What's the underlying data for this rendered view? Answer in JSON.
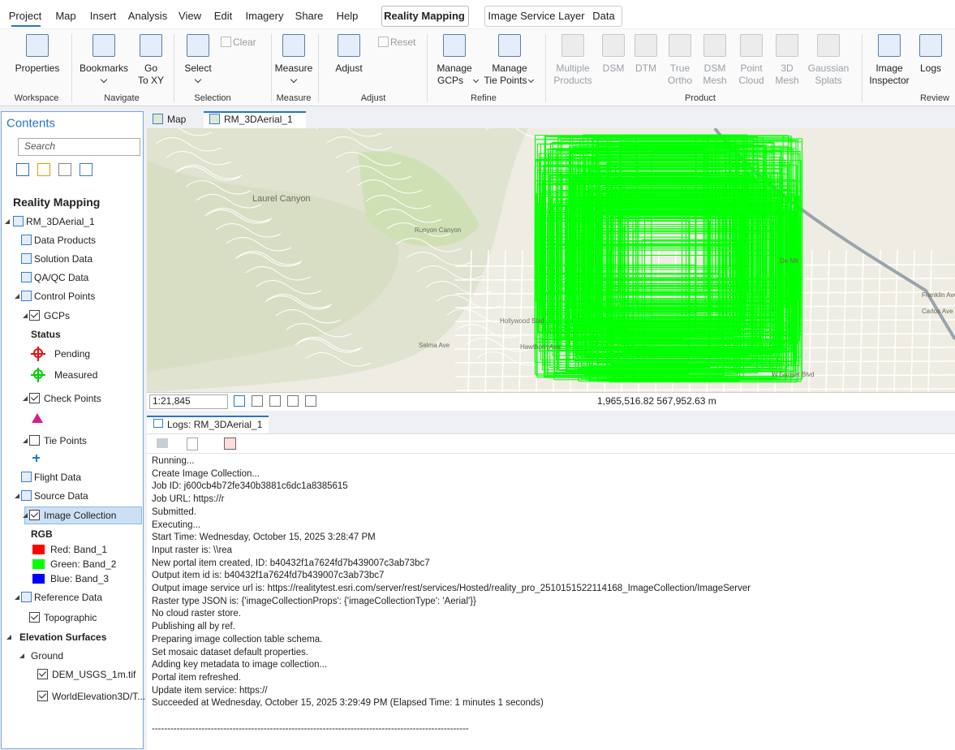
{
  "menu": {
    "tabs": [
      "Project",
      "Map",
      "Insert",
      "Analysis",
      "View",
      "Edit",
      "Imagery",
      "Share",
      "Help",
      "Reality Mapping",
      "Image Service Layer",
      "Data"
    ]
  },
  "ribbon": {
    "groups": [
      {
        "name": "Workspace",
        "buttons": [
          {
            "lines": [
              "Properties"
            ]
          }
        ]
      },
      {
        "name": "Navigate",
        "buttons": [
          {
            "lines": [
              "Bookmarks"
            ]
          },
          {
            "lines": [
              "Go",
              "To XY"
            ]
          }
        ]
      },
      {
        "name": "Selection",
        "buttons": [
          {
            "lines": [
              "Select"
            ]
          },
          {
            "lines": [
              "Clear"
            ]
          }
        ]
      },
      {
        "name": "Measure",
        "buttons": [
          {
            "lines": [
              "Measure"
            ]
          }
        ]
      },
      {
        "name": "Adjust",
        "buttons": [
          {
            "lines": [
              "Adjust"
            ]
          },
          {
            "lines": [
              "Reset"
            ]
          }
        ]
      },
      {
        "name": "Refine",
        "buttons": [
          {
            "lines": [
              "Manage",
              "GCPs"
            ]
          },
          {
            "lines": [
              "Manage",
              "Tie Points"
            ]
          }
        ]
      },
      {
        "name": "Product",
        "buttons": [
          {
            "lines": [
              "Multiple",
              "Products"
            ]
          },
          {
            "lines": [
              "DSM"
            ]
          },
          {
            "lines": [
              "DTM"
            ]
          },
          {
            "lines": [
              "True",
              "Ortho"
            ]
          },
          {
            "lines": [
              "DSM",
              "Mesh"
            ]
          },
          {
            "lines": [
              "Point",
              "Cloud"
            ]
          },
          {
            "lines": [
              "3D",
              "Mesh"
            ]
          },
          {
            "lines": [
              "Gaussian",
              "Splats"
            ]
          }
        ]
      },
      {
        "name": "Review",
        "buttons": [
          {
            "lines": [
              "Image",
              "Inspector"
            ]
          },
          {
            "lines": [
              "Logs"
            ]
          }
        ]
      }
    ]
  },
  "contents": {
    "title": "Contents",
    "search": "Search",
    "heading": "Reality Mapping",
    "items": [
      "RM_3DAerial_1",
      "Data Products",
      "Solution Data",
      "QA/QC Data",
      "Control Points",
      "GCPs",
      "Status",
      "Pending",
      "Measured",
      "Check Points",
      "Tie Points",
      "Flight Data",
      "Source Data",
      "Image Collection",
      "RGB",
      "Red: Band_1",
      "Green: Band_2",
      "Blue: Band_3",
      "Reference Data",
      "Topographic",
      "Elevation Surfaces",
      "Ground",
      "DEM_USGS_1m.tif",
      "WorldElevation3D/T..."
    ]
  },
  "map": {
    "tabs": [
      "Map",
      "RM_3DAerial_1"
    ],
    "labels": [
      "Laurel Canyon",
      "Runyon Canyon",
      "Hollywood Blvd",
      "Selma Ave",
      "Hawthorn Ave",
      "W Sunset Blvd",
      "Franklin Ave",
      "Carlos Ave",
      "De Mil"
    ],
    "scale": "1:21,845",
    "coordinates": "1,965,516.82 567,952.63 m"
  },
  "logs": {
    "tab": "Logs: RM_3DAerial_1",
    "lines": [
      "Running...",
      "Create Image Collection...",
      "Job ID: j600cb4b72fe340b3881c6dc1a8385615",
      "Job URL: https://r",
      "Submitted.",
      "Executing...",
      "Start Time: Wednesday, October 15, 2025 3:28:47 PM",
      "Input raster is: \\\\rea",
      "New portal item created, ID: b40432f1a7624fd7b439007c3ab73bc7",
      "Output item id is: b40432f1a7624fd7b439007c3ab73bc7",
      "Output image service url is: https://realitytest.esri.com/server/rest/services/Hosted/reality_pro_2510151522114168_ImageCollection/ImageServer",
      "Raster type JSON is: {'imageCollectionProps': {'imageCollectionType': 'Aerial'}}",
      "No cloud raster store.",
      "Publishing all by ref.",
      "Preparing image collection table schema.",
      "Set mosaic dataset default properties.",
      "Adding key metadata to image collection...",
      "Portal item refreshed.",
      "Update item service: https://",
      "Succeeded at Wednesday, October 15, 2025 3:29:49 PM (Elapsed Time: 1 minutes 1 seconds)",
      "",
      "------------------------------------------------------------------------------------------------------"
    ]
  }
}
